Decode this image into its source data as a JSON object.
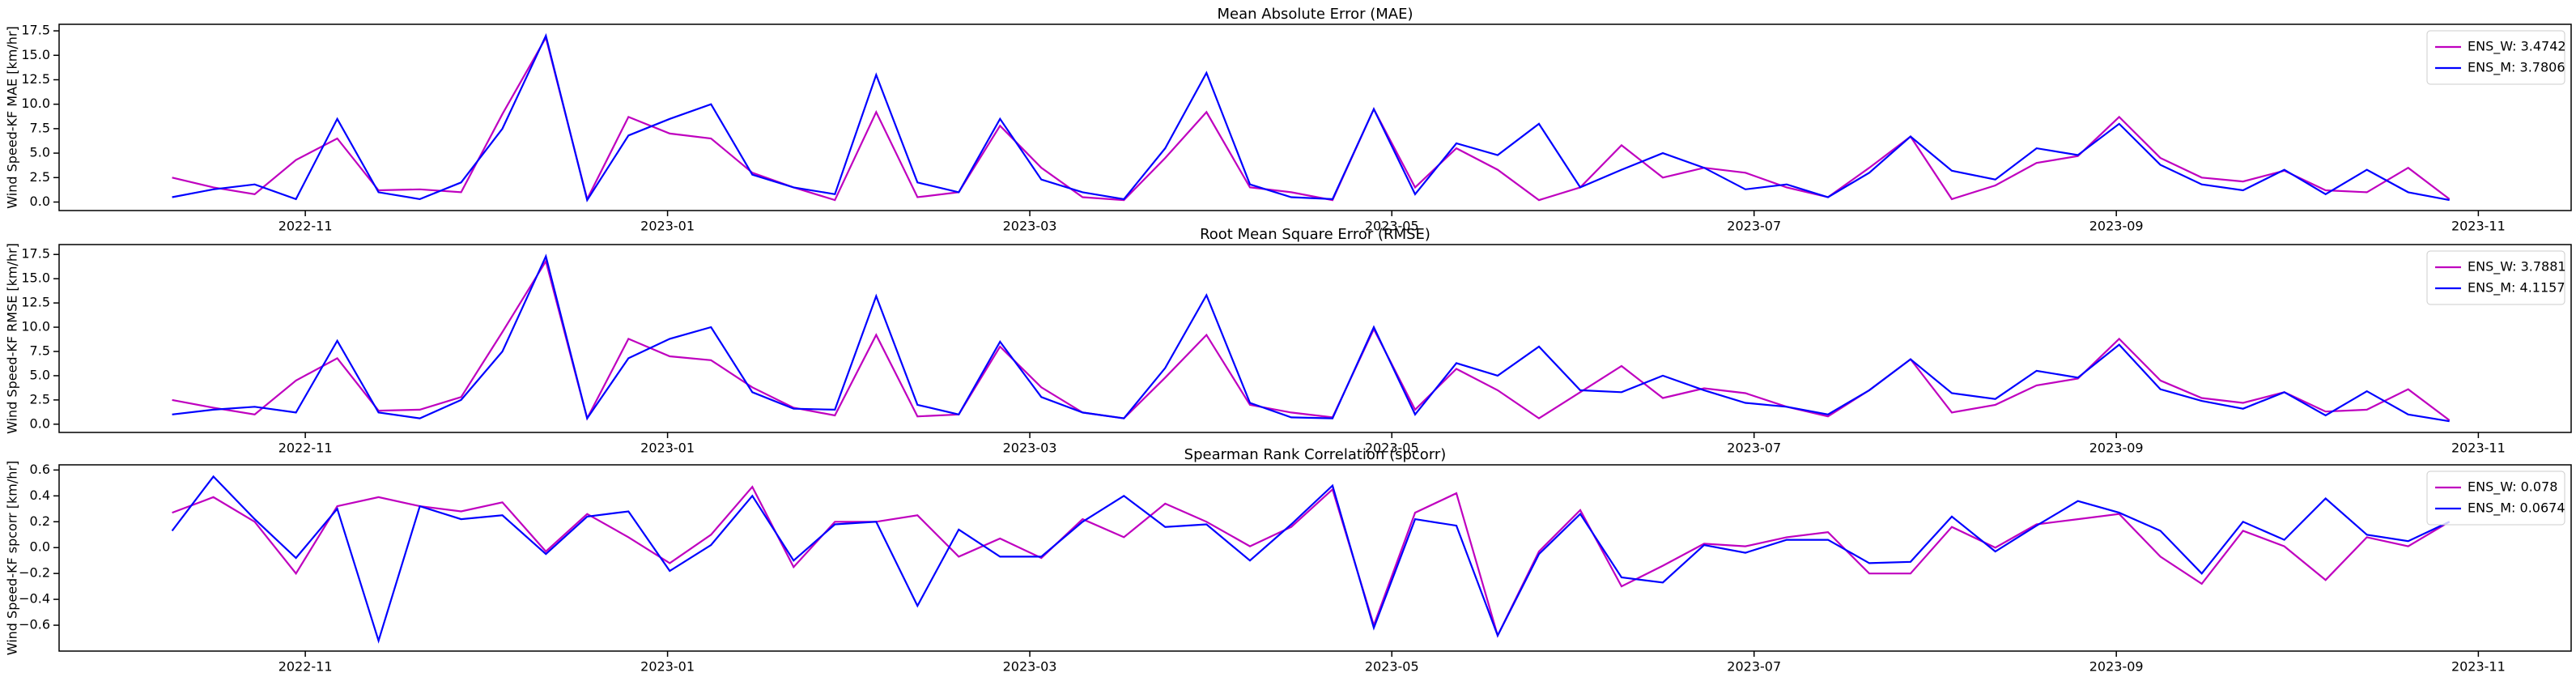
{
  "chart_data": [
    {
      "type": "line",
      "title": "Mean Absolute Error (MAE)",
      "ylabel": "Wind Speed-KF MAE [km/hr]",
      "legend": "upper right",
      "x": [
        2022.772,
        2022.791,
        2022.81,
        2022.829,
        2022.848,
        2022.867,
        2022.886,
        2022.905,
        2022.924,
        2022.944,
        2022.963,
        2022.982,
        2023.001,
        2023.02,
        2023.039,
        2023.058,
        2023.077,
        2023.096,
        2023.115,
        2023.134,
        2023.153,
        2023.172,
        2023.191,
        2023.21,
        2023.229,
        2023.248,
        2023.268,
        2023.287,
        2023.306,
        2023.325,
        2023.344,
        2023.363,
        2023.382,
        2023.401,
        2023.42,
        2023.439,
        2023.458,
        2023.477,
        2023.496,
        2023.515,
        2023.534,
        2023.553,
        2023.572,
        2023.591,
        2023.611,
        2023.63,
        2023.649,
        2023.668,
        2023.687,
        2023.706,
        2023.725,
        2023.744,
        2023.763,
        2023.782,
        2023.801,
        2023.82
      ],
      "xlim": [
        2022.72,
        2023.876
      ],
      "xticks": [
        {
          "value": 2022.8333,
          "label": "2022-11"
        },
        {
          "value": 2023.0,
          "label": "2023-01"
        },
        {
          "value": 2023.1667,
          "label": "2023-03"
        },
        {
          "value": 2023.3333,
          "label": "2023-05"
        },
        {
          "value": 2023.5,
          "label": "2023-07"
        },
        {
          "value": 2023.6667,
          "label": "2023-09"
        },
        {
          "value": 2023.8333,
          "label": "2023-11"
        }
      ],
      "ylim": [
        -0.87,
        18.17
      ],
      "yticks": [
        {
          "value": 0,
          "label": "0.0"
        },
        2.5,
        {
          "value": 5,
          "label": "5.0"
        },
        7.5,
        {
          "value": 10,
          "label": "10.0"
        },
        12.5,
        {
          "value": 15,
          "label": "15.0"
        },
        17.5
      ],
      "series": [
        {
          "name": "ENS_W: 3.4742",
          "color": "#bf00bf",
          "values": [
            2.5,
            1.5,
            0.8,
            4.3,
            6.5,
            1.2,
            1.3,
            1.0,
            9,
            16.8,
            0.3,
            8.7,
            7,
            6.5,
            3,
            1.5,
            0.2,
            9.2,
            0.5,
            1,
            7.8,
            3.5,
            0.5,
            0.2,
            4.5,
            9.2,
            1.5,
            1,
            0.2,
            9.5,
            1.5,
            5.5,
            3.3,
            0.2,
            1.5,
            5.8,
            2.5,
            3.5,
            3,
            1.5,
            0.5,
            3.5,
            6.7,
            0.3,
            1.7,
            4,
            4.7,
            8.7,
            4.5,
            2.5,
            2.1,
            3.2,
            1.2,
            1,
            3.5,
            0.3
          ]
        },
        {
          "name": "ENS_M: 3.7806",
          "color": "#0000ff",
          "values": [
            0.5,
            1.3,
            1.8,
            0.3,
            8.5,
            1.0,
            0.3,
            2,
            7.5,
            17,
            0.2,
            6.8,
            8.5,
            10,
            2.8,
            1.5,
            0.8,
            13,
            2,
            1,
            8.5,
            2.3,
            1,
            0.3,
            5.5,
            13.2,
            1.8,
            0.5,
            0.3,
            9.5,
            0.8,
            6,
            4.8,
            8,
            1.5,
            3.3,
            5,
            3.5,
            1.3,
            1.8,
            0.5,
            3,
            6.7,
            3.2,
            2.3,
            5.5,
            4.8,
            8,
            3.8,
            1.8,
            1.2,
            3.3,
            0.8,
            3.3,
            1,
            0.2
          ]
        }
      ]
    },
    {
      "type": "line",
      "title": "Root Mean Square Error (RMSE)",
      "ylabel": "Wind Speed-KF RMSE [km/hr]",
      "legend": "upper right",
      "x": [
        2022.772,
        2022.791,
        2022.81,
        2022.829,
        2022.848,
        2022.867,
        2022.886,
        2022.905,
        2022.924,
        2022.944,
        2022.963,
        2022.982,
        2023.001,
        2023.02,
        2023.039,
        2023.058,
        2023.077,
        2023.096,
        2023.115,
        2023.134,
        2023.153,
        2023.172,
        2023.191,
        2023.21,
        2023.229,
        2023.248,
        2023.268,
        2023.287,
        2023.306,
        2023.325,
        2023.344,
        2023.363,
        2023.382,
        2023.401,
        2023.42,
        2023.439,
        2023.458,
        2023.477,
        2023.496,
        2023.515,
        2023.534,
        2023.553,
        2023.572,
        2023.591,
        2023.611,
        2023.63,
        2023.649,
        2023.668,
        2023.687,
        2023.706,
        2023.725,
        2023.744,
        2023.763,
        2023.782,
        2023.801,
        2023.82
      ],
      "xlim": [
        2022.72,
        2023.876
      ],
      "xticks": [
        {
          "value": 2022.8333,
          "label": "2022-11"
        },
        {
          "value": 2023.0,
          "label": "2023-01"
        },
        {
          "value": 2023.1667,
          "label": "2023-03"
        },
        {
          "value": 2023.3333,
          "label": "2023-05"
        },
        {
          "value": 2023.5,
          "label": "2023-07"
        },
        {
          "value": 2023.6667,
          "label": "2023-09"
        },
        {
          "value": 2023.8333,
          "label": "2023-11"
        }
      ],
      "ylim": [
        -0.85,
        18.52
      ],
      "yticks": [
        {
          "value": 0,
          "label": "0.0"
        },
        2.5,
        {
          "value": 5,
          "label": "5.0"
        },
        7.5,
        {
          "value": 10,
          "label": "10.0"
        },
        12.5,
        {
          "value": 15,
          "label": "15.0"
        },
        17.5
      ],
      "series": [
        {
          "name": "ENS_W: 3.7881",
          "color": "#bf00bf",
          "values": [
            2.5,
            1.7,
            1,
            4.5,
            6.8,
            1.4,
            1.5,
            2.8,
            9.5,
            16.8,
            0.6,
            8.8,
            7,
            6.6,
            3.8,
            1.7,
            0.9,
            9.2,
            0.8,
            1,
            8,
            3.8,
            1.2,
            0.6,
            4.8,
            9.2,
            2,
            1.2,
            0.7,
            9.8,
            1.5,
            5.7,
            3.5,
            0.6,
            3.3,
            6,
            2.7,
            3.7,
            3.2,
            1.8,
            0.8,
            3.5,
            6.7,
            1.2,
            2,
            4,
            4.7,
            8.8,
            4.5,
            2.7,
            2.2,
            3.3,
            1.3,
            1.5,
            3.6,
            0.4
          ]
        },
        {
          "name": "ENS_M: 4.1157",
          "color": "#0000ff",
          "values": [
            1.0,
            1.5,
            1.8,
            1.2,
            8.6,
            1.2,
            0.6,
            2.5,
            7.5,
            17.3,
            0.6,
            6.8,
            8.8,
            10,
            3.3,
            1.6,
            1.5,
            13.2,
            2,
            1,
            8.5,
            2.8,
            1.2,
            0.6,
            5.8,
            13.3,
            2.2,
            0.7,
            0.6,
            10,
            1,
            6.3,
            5,
            8,
            3.5,
            3.3,
            5,
            3.5,
            2.2,
            1.8,
            1,
            3.5,
            6.7,
            3.2,
            2.6,
            5.5,
            4.8,
            8.2,
            3.6,
            2.4,
            1.6,
            3.3,
            0.9,
            3.4,
            1,
            0.3
          ]
        }
      ]
    },
    {
      "type": "line",
      "title": "Spearman Rank Correlation (spcorr)",
      "ylabel": "Wind Speed-KF spcorr [km/hr]",
      "legend": "upper right",
      "x": [
        2022.772,
        2022.791,
        2022.81,
        2022.829,
        2022.848,
        2022.867,
        2022.886,
        2022.905,
        2022.924,
        2022.944,
        2022.963,
        2022.982,
        2023.001,
        2023.02,
        2023.039,
        2023.058,
        2023.077,
        2023.096,
        2023.115,
        2023.134,
        2023.153,
        2023.172,
        2023.191,
        2023.21,
        2023.229,
        2023.248,
        2023.268,
        2023.287,
        2023.306,
        2023.325,
        2023.344,
        2023.363,
        2023.382,
        2023.401,
        2023.42,
        2023.439,
        2023.458,
        2023.477,
        2023.496,
        2023.515,
        2023.534,
        2023.553,
        2023.572,
        2023.591,
        2023.611,
        2023.63,
        2023.649,
        2023.668,
        2023.687,
        2023.706,
        2023.725,
        2023.744,
        2023.763,
        2023.782,
        2023.801,
        2023.82
      ],
      "xlim": [
        2022.72,
        2023.876
      ],
      "xticks": [
        {
          "value": 2022.8333,
          "label": "2022-11"
        },
        {
          "value": 2023.0,
          "label": "2023-01"
        },
        {
          "value": 2023.1667,
          "label": "2023-03"
        },
        {
          "value": 2023.3333,
          "label": "2023-05"
        },
        {
          "value": 2023.5,
          "label": "2023-07"
        },
        {
          "value": 2023.6667,
          "label": "2023-09"
        },
        {
          "value": 2023.8333,
          "label": "2023-11"
        }
      ],
      "ylim": [
        -0.8,
        0.64
      ],
      "yticks": [
        {
          "value": -0.6,
          "label": "−0.6"
        },
        {
          "value": -0.4,
          "label": "−0.4"
        },
        {
          "value": -0.2,
          "label": "−0.2"
        },
        {
          "value": 0,
          "label": "0.0"
        },
        0.2,
        0.4,
        0.6
      ],
      "series": [
        {
          "name": "ENS_W: 0.078",
          "color": "#bf00bf",
          "values": [
            0.27,
            0.39,
            0.2,
            -0.2,
            0.32,
            0.39,
            0.32,
            0.28,
            0.35,
            -0.03,
            0.26,
            0.08,
            -0.12,
            0.1,
            0.47,
            -0.15,
            0.2,
            0.2,
            0.25,
            -0.07,
            0.07,
            -0.08,
            0.22,
            0.08,
            0.34,
            0.2,
            0.01,
            0.16,
            0.45,
            -0.6,
            0.27,
            0.42,
            -0.68,
            -0.03,
            0.29,
            -0.3,
            -0.14,
            0.03,
            0.01,
            0.08,
            0.12,
            -0.2,
            -0.2,
            0.16,
            0,
            0.18,
            0.22,
            0.26,
            -0.07,
            -0.28,
            0.13,
            0.01,
            -0.25,
            0.08,
            0.01,
            0.2
          ]
        },
        {
          "name": "ENS_M: 0.0674",
          "color": "#0000ff",
          "values": [
            0.13,
            0.55,
            0.22,
            -0.08,
            0.3,
            -0.72,
            0.32,
            0.22,
            0.25,
            -0.05,
            0.24,
            0.28,
            -0.18,
            0.02,
            0.4,
            -0.1,
            0.18,
            0.2,
            -0.45,
            0.14,
            -0.07,
            -0.07,
            0.2,
            0.4,
            0.16,
            0.18,
            -0.1,
            0.18,
            0.48,
            -0.62,
            0.22,
            0.17,
            -0.68,
            -0.05,
            0.26,
            -0.23,
            -0.27,
            0.02,
            -0.04,
            0.06,
            0.06,
            -0.12,
            -0.11,
            0.24,
            -0.03,
            0.17,
            0.36,
            0.27,
            0.13,
            -0.2,
            0.2,
            0.06,
            0.38,
            0.1,
            0.05,
            0.2
          ]
        }
      ]
    }
  ]
}
